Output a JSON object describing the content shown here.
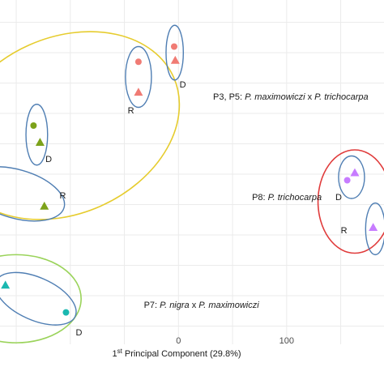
{
  "chart_data": {
    "type": "scatter",
    "xlabel": {
      "prefix": "1",
      "sup": "st",
      "rest": " Principal Component (29.8%)"
    },
    "xlim": [
      -165,
      190
    ],
    "ylim": [
      -5.6,
      5.2
    ],
    "x_ticks": [
      0,
      100
    ],
    "grid": "on",
    "colors": {
      "salmon": "#f07b74",
      "olive": "#7ca21a",
      "teal": "#1ab8b0",
      "purple": "#c77cff",
      "pair_ring": "#4f7eb3",
      "ring_p3p5": "#e6cc2e",
      "ring_p7": "#9ad35a",
      "ring_p8": "#e03b3b"
    },
    "points": [
      {
        "x": -37,
        "y": 3.7,
        "shape": "circle",
        "color": "salmon"
      },
      {
        "x": -37,
        "y": 2.7,
        "shape": "triangle",
        "color": "salmon"
      },
      {
        "x": -4,
        "y": 4.2,
        "shape": "circle",
        "color": "salmon"
      },
      {
        "x": -3,
        "y": 3.75,
        "shape": "triangle",
        "color": "salmon"
      },
      {
        "x": -134,
        "y": 1.6,
        "shape": "circle",
        "color": "olive"
      },
      {
        "x": -128,
        "y": 1.05,
        "shape": "triangle",
        "color": "olive"
      },
      {
        "x": -124,
        "y": -1.05,
        "shape": "triangle",
        "color": "olive"
      },
      {
        "x": -160,
        "y": -3.65,
        "shape": "triangle",
        "color": "teal"
      },
      {
        "x": -104,
        "y": -4.55,
        "shape": "circle",
        "color": "teal"
      },
      {
        "x": 156,
        "y": -0.2,
        "shape": "circle",
        "color": "purple"
      },
      {
        "x": 163,
        "y": 0.05,
        "shape": "triangle",
        "color": "purple"
      },
      {
        "x": 180,
        "y": -1.75,
        "shape": "triangle",
        "color": "purple"
      }
    ],
    "pair_rings": [
      {
        "cx": -37,
        "cy": 3.2,
        "rx": 12,
        "ry": 1.0,
        "rot": 0
      },
      {
        "cx": -3.5,
        "cy": 4.0,
        "rx": 8,
        "ry": 0.9,
        "rot": 0
      },
      {
        "cx": -131,
        "cy": 1.3,
        "rx": 10,
        "ry": 1.0,
        "rot": 0
      },
      {
        "cx": -150,
        "cy": -0.65,
        "rx": 46,
        "ry": 0.8,
        "rot": 16
      },
      {
        "cx": -132,
        "cy": -4.1,
        "rx": 40,
        "ry": 0.7,
        "rot": 24
      },
      {
        "cx": 160,
        "cy": -0.1,
        "rx": 12,
        "ry": 0.7,
        "rot": 0
      },
      {
        "cx": 182,
        "cy": -1.8,
        "rx": 9,
        "ry": 0.85,
        "rot": 0
      }
    ],
    "group_rings": [
      {
        "cx": -105,
        "cy": 1.6,
        "rx": 110,
        "ry": 2.9,
        "rot": -24,
        "color": "ring_p3p5"
      },
      {
        "cx": -150,
        "cy": -4.1,
        "rx": 60,
        "ry": 1.45,
        "rot": 0,
        "color": "ring_p7"
      },
      {
        "cx": 163,
        "cy": -0.9,
        "rx": 34,
        "ry": 1.7,
        "rot": 0,
        "color": "ring_p8"
      }
    ],
    "point_labels": [
      {
        "text": "R",
        "x": -44,
        "y": 2.0
      },
      {
        "text": "D",
        "x": 4,
        "y": 2.85
      },
      {
        "text": "D",
        "x": -120,
        "y": 0.4
      },
      {
        "text": "R",
        "x": -107,
        "y": -0.8
      },
      {
        "text": "D",
        "x": -92,
        "y": -5.3
      },
      {
        "text": "D",
        "x": 148,
        "y": -0.85
      },
      {
        "text": "R",
        "x": 153,
        "y": -1.95
      }
    ],
    "group_labels": [
      {
        "pre": "P3, P5: ",
        "italic1": "P. maximowiczi",
        "mid": " x ",
        "italic2": "P. trichocarpa",
        "x": 32,
        "y": 2.45
      },
      {
        "pre": "P8: ",
        "italic1": "P. trichocarpa",
        "mid": "",
        "italic2": "",
        "x": 68,
        "y": -0.85
      },
      {
        "pre": "P7: ",
        "italic1": "P. nigra",
        "mid": " x ",
        "italic2": "P. maximowiczi",
        "x": -32,
        "y": -4.4
      }
    ]
  }
}
